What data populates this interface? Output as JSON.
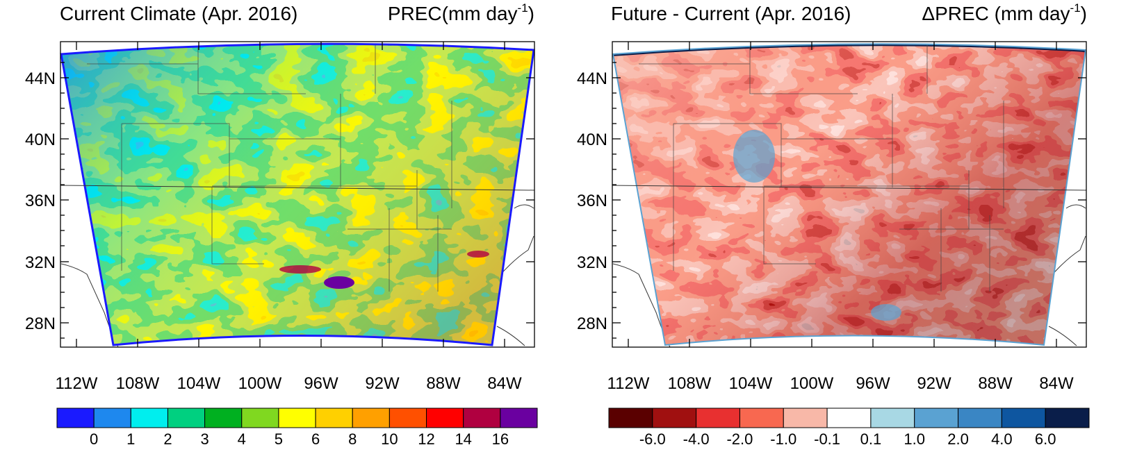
{
  "panels": [
    {
      "title_left": "Current Climate (Apr. 2016)",
      "title_right_main": "PREC(mm day",
      "title_right_sup": "-1",
      "title_right_close": ")",
      "variable": "PREC",
      "units": "mm day-1",
      "colorbar": {
        "colors": [
          "#1a1aff",
          "#1e88ee",
          "#00eeee",
          "#00d080",
          "#00b020",
          "#80d820",
          "#ffff00",
          "#ffd000",
          "#ffa000",
          "#ff5000",
          "#ff0000",
          "#b00040",
          "#6a00a0"
        ],
        "labels": [
          "0",
          "1",
          "2",
          "3",
          "4",
          "5",
          "6",
          "8",
          "10",
          "12",
          "14",
          "16"
        ]
      }
    },
    {
      "title_left": "Future - Current (Apr. 2016)",
      "title_right_main": "ΔPREC (mm day",
      "title_right_sup": "-1",
      "title_right_close": ")",
      "variable": "ΔPREC",
      "units": "mm day-1",
      "colorbar": {
        "colors": [
          "#5a0000",
          "#a01010",
          "#e83030",
          "#f86850",
          "#f8b8a8",
          "#ffffff",
          "#a8d8e4",
          "#5aa2d2",
          "#3a86c4",
          "#0e56a0",
          "#0a1e4a"
        ],
        "labels": [
          "-6.0",
          "-4.0",
          "-2.0",
          "-1.0",
          "-0.1",
          "0.1",
          "1.0",
          "2.0",
          "4.0",
          "6.0"
        ]
      }
    }
  ],
  "axes": {
    "lon_labels": [
      "112W",
      "108W",
      "104W",
      "100W",
      "96W",
      "92W",
      "88W",
      "84W"
    ],
    "lat_labels": [
      "44N",
      "40N",
      "36N",
      "32N",
      "28N"
    ]
  },
  "colors": {
    "precip_low": "#1e88ee",
    "precip_high": "#ffd000",
    "delta_dry": "#e83030",
    "delta_wet": "#5aa2d2"
  }
}
